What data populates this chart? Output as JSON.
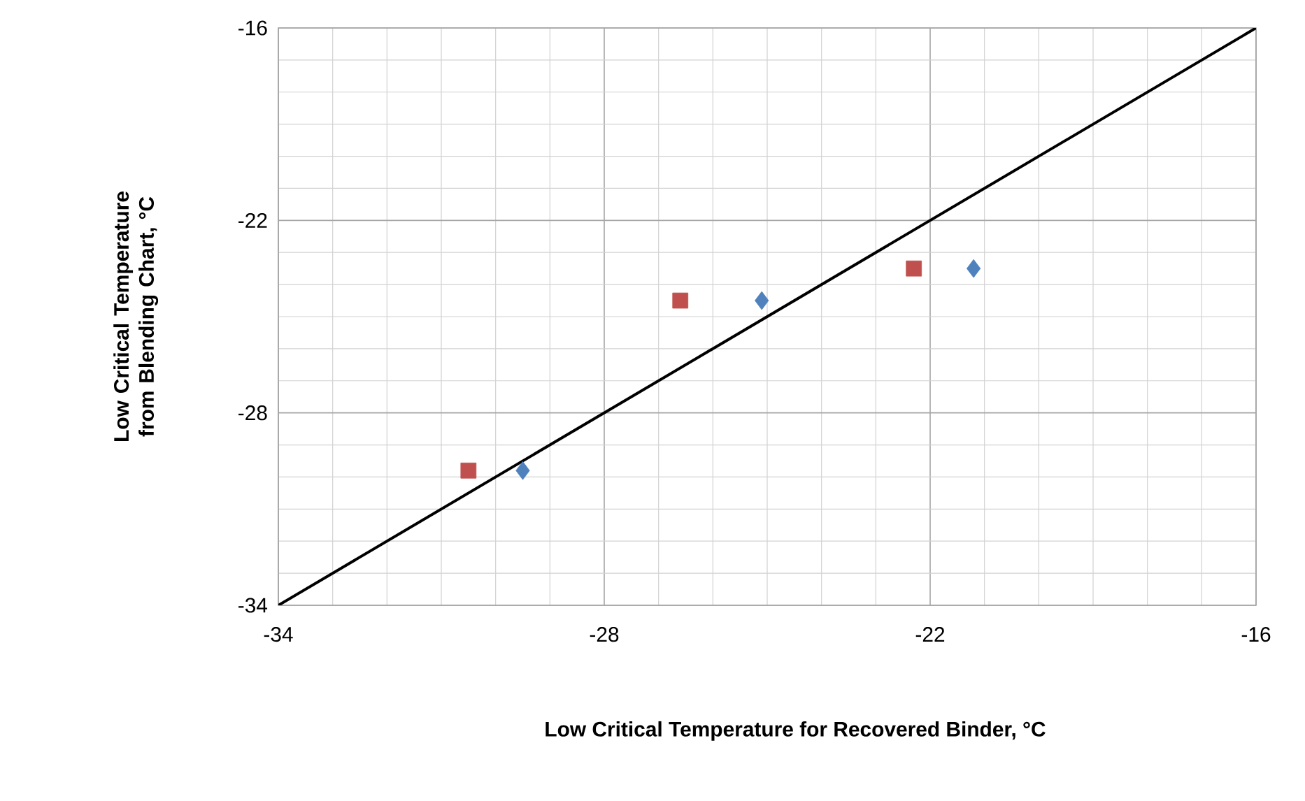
{
  "chart_data": {
    "type": "scatter",
    "xlabel": "Low Critical Temperature for Recovered Binder, °C",
    "ylabel": "Low Critical Temperature from Blending Chart, °C",
    "xlim": [
      -34,
      -16
    ],
    "ylim": [
      -34,
      -16
    ],
    "xticks": [
      -34,
      -28,
      -22,
      -16
    ],
    "yticks": [
      -34,
      -28,
      -22,
      -16
    ],
    "grid": true,
    "series": [
      {
        "marker": "diamond",
        "color": "#4f81bd",
        "x": [
          -29.5,
          -25.1,
          -21.2
        ],
        "values": [
          -29.8,
          -24.5,
          -23.5
        ]
      },
      {
        "marker": "square",
        "color": "#c0504d",
        "x": [
          -30.5,
          -26.6,
          -22.3
        ],
        "values": [
          -29.8,
          -24.5,
          -23.5
        ]
      },
      {
        "type": "line",
        "marker": "none",
        "color": "#000000",
        "x": [
          -34,
          -16
        ],
        "values": [
          -34,
          -16
        ]
      }
    ]
  }
}
